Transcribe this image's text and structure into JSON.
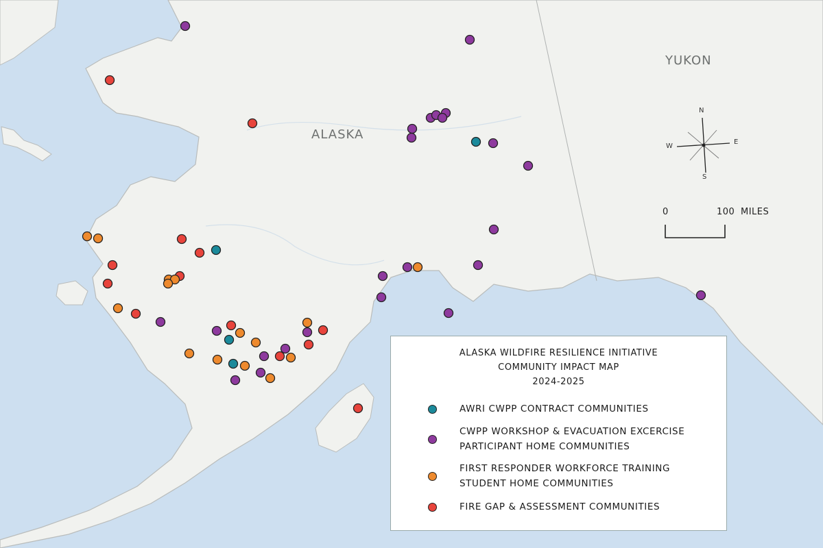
{
  "map": {
    "region_labels": {
      "alaska": "ALASKA",
      "yukon": "YUKON"
    },
    "compass": {
      "n": "N",
      "e": "E",
      "s": "S",
      "w": "W"
    },
    "scale": {
      "start": "0",
      "end": "100",
      "unit": "MILES"
    },
    "colors": {
      "ocean": "#cddff0",
      "land": "#f1f2ef",
      "border": "#b9bcbb"
    }
  },
  "legend": {
    "title_lines": [
      "ALASKA WILDFIRE RESILIENCE INITIATIVE",
      "COMMUNITY IMPACT MAP",
      "2024-2025"
    ],
    "items": [
      {
        "key": "awri",
        "lines": [
          "AWRI CWPP CONTRACT COMMUNITIES"
        ],
        "color": "#1b8a9b"
      },
      {
        "key": "workshop",
        "lines": [
          "CWPP WORKSHOP & EVACUATION EXCERCISE",
          "PARTICIPANT HOME COMMUNITIES"
        ],
        "color": "#8e3a9e"
      },
      {
        "key": "training",
        "lines": [
          "FIRST RESPONDER WORKFORCE TRAINING",
          "STUDENT HOME COMMUNITIES"
        ],
        "color": "#ee8a2e"
      },
      {
        "key": "firegap",
        "lines": [
          "FIRE GAP & ASSESSMENT COMMUNITIES"
        ],
        "color": "#e8443c"
      }
    ]
  }
}
